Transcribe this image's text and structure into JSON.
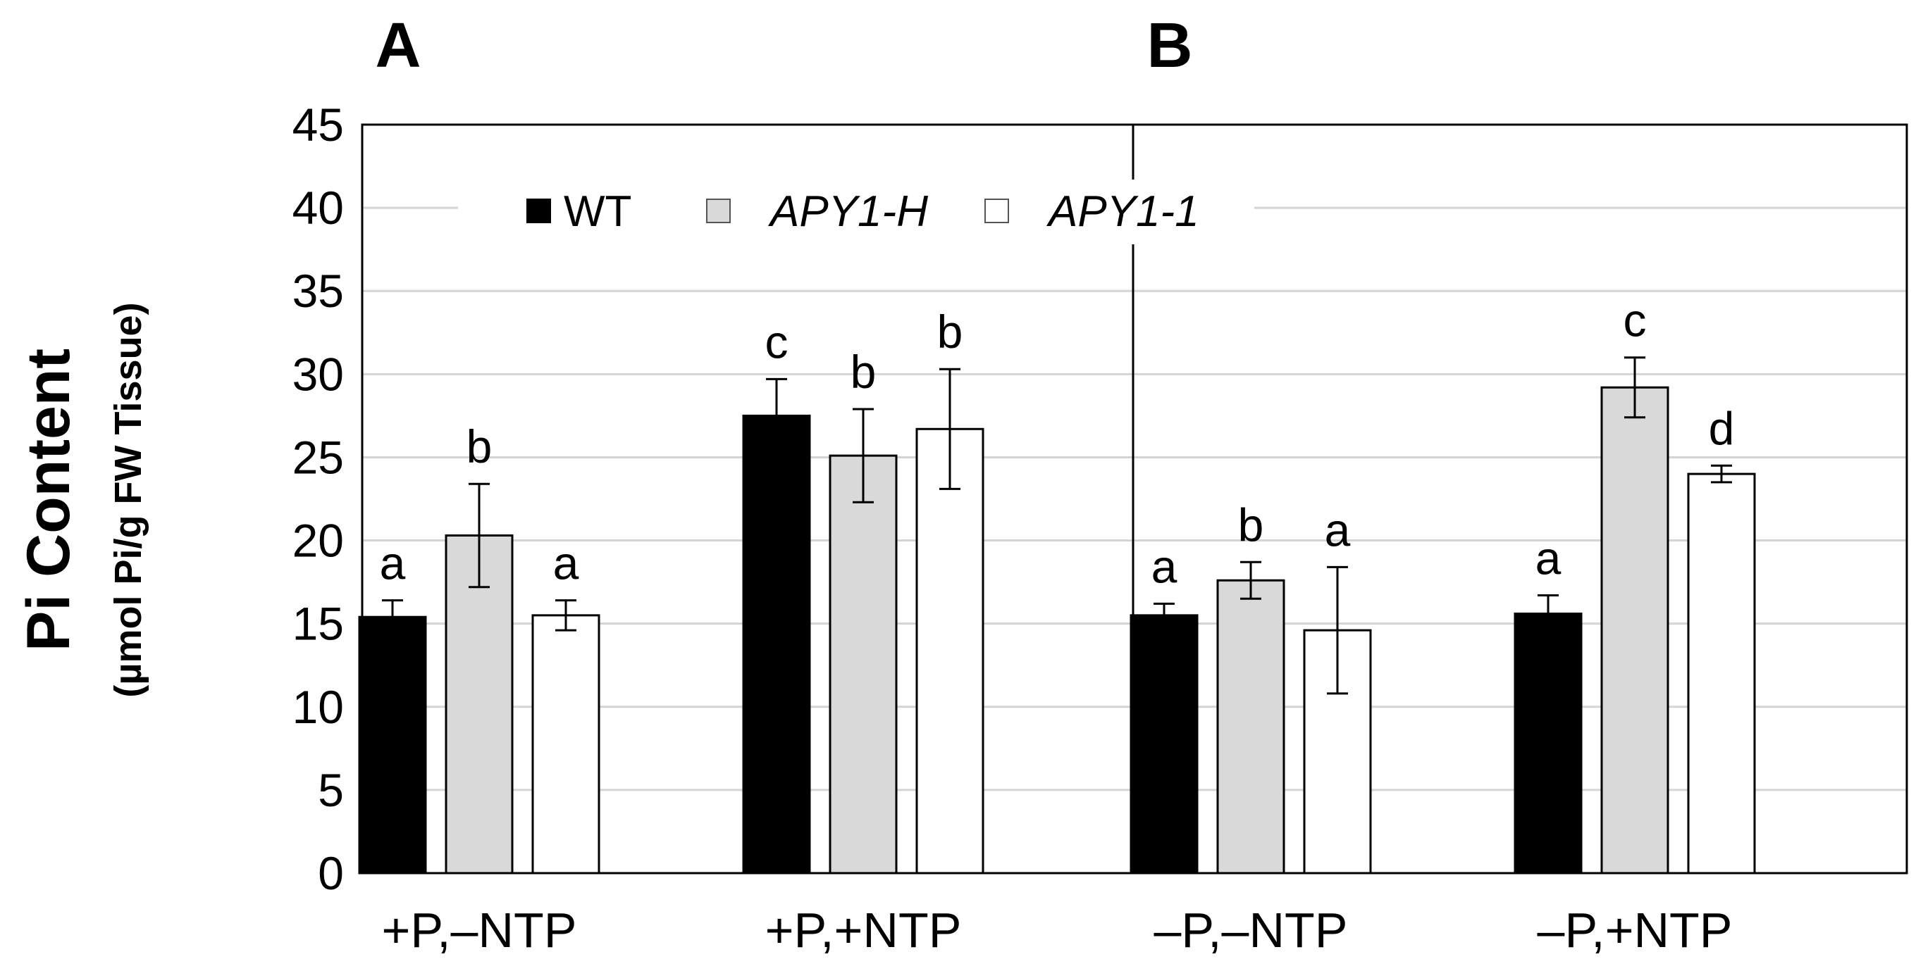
{
  "chart_data": {
    "type": "bar",
    "panels": [
      {
        "label": "A",
        "categories": [
          "+P,–NTP",
          "+P,+NTP"
        ]
      },
      {
        "label": "B",
        "categories": [
          "–P,–NTP",
          "–P,+NTP"
        ]
      }
    ],
    "categories": [
      "+P,–NTP",
      "+P,+NTP",
      "–P,–NTP",
      "–P,+NTP"
    ],
    "ylabel": "Pi Content",
    "ylabel_unit": "(µmol Pi/g FW Tissue)",
    "ylim": [
      0,
      45
    ],
    "yticks": [
      0,
      5,
      10,
      15,
      20,
      25,
      30,
      35,
      40,
      45
    ],
    "grid": true,
    "legend_position": "top",
    "series": [
      {
        "name": "WT",
        "italic": false,
        "color": "#000000",
        "values": [
          15.4,
          27.5,
          15.5,
          15.6
        ],
        "errors": [
          1.0,
          2.2,
          0.7,
          1.1
        ],
        "significance": [
          "a",
          "c",
          "a",
          "a"
        ]
      },
      {
        "name": "APY1-H",
        "italic": true,
        "color": "#d9d9d9",
        "values": [
          20.3,
          25.1,
          17.6,
          29.2
        ],
        "errors": [
          3.1,
          2.8,
          1.1,
          1.8
        ],
        "significance": [
          "b",
          "b",
          "b",
          "c"
        ]
      },
      {
        "name": "APY1-1",
        "italic": true,
        "color": "#ffffff",
        "values": [
          15.5,
          26.7,
          14.6,
          24.0
        ],
        "errors": [
          0.9,
          3.6,
          3.8,
          0.5
        ],
        "significance": [
          "a",
          "b",
          "a",
          "d"
        ]
      }
    ]
  }
}
